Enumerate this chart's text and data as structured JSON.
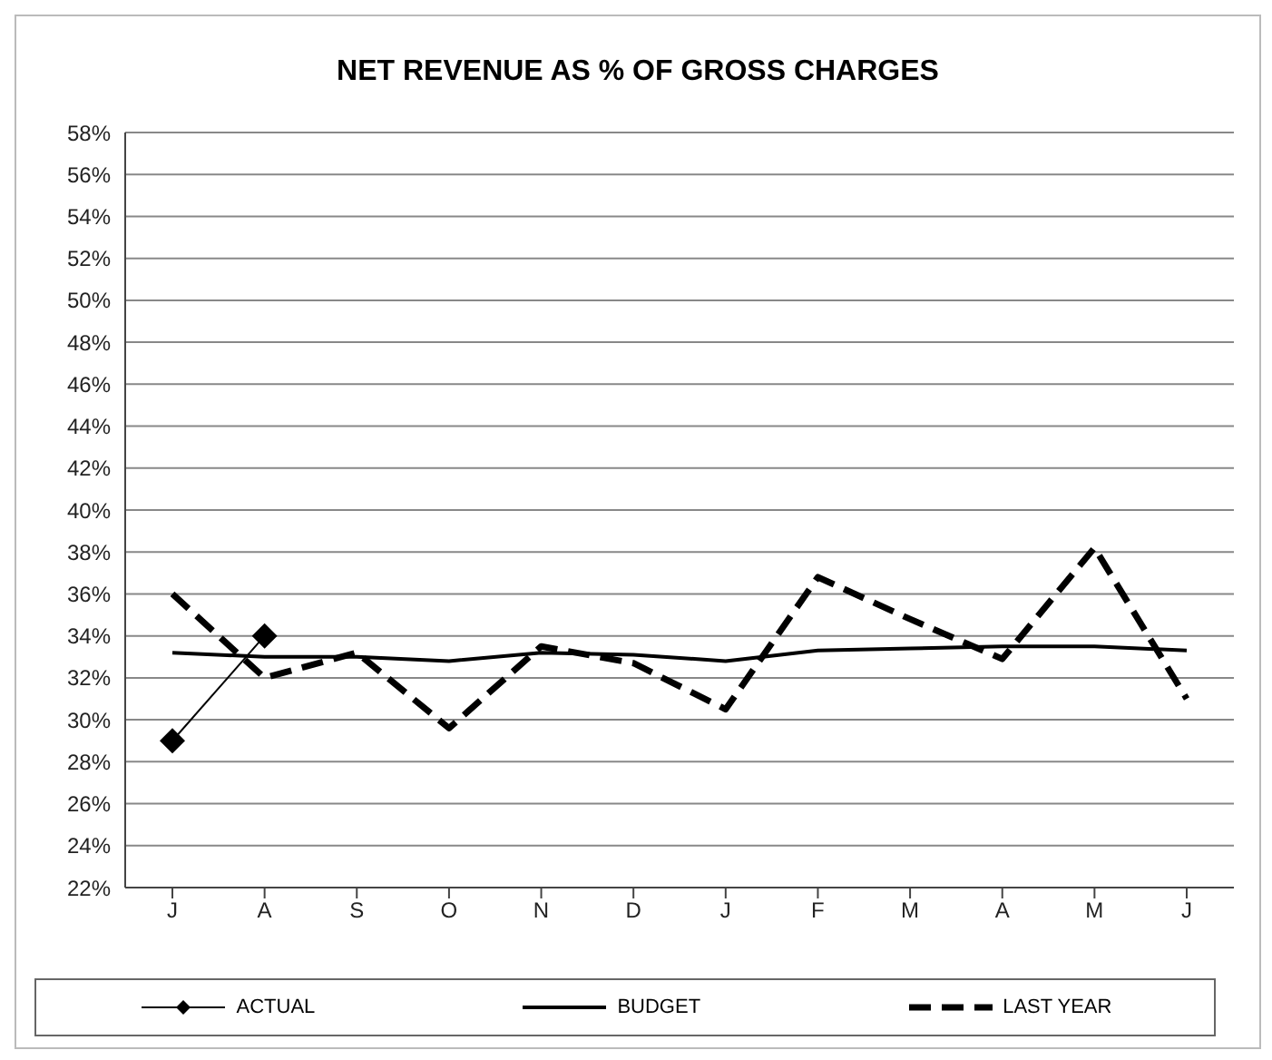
{
  "chart_data": {
    "type": "line",
    "title": "NET REVENUE AS % OF GROSS CHARGES",
    "categories": [
      "J",
      "A",
      "S",
      "O",
      "N",
      "D",
      "J",
      "F",
      "M",
      "A",
      "M",
      "J"
    ],
    "series": [
      {
        "name": "ACTUAL",
        "color": "#000000",
        "marker": "diamond",
        "line_style": "solid",
        "values": [
          29,
          34,
          null,
          null,
          null,
          null,
          null,
          null,
          null,
          null,
          null,
          null
        ]
      },
      {
        "name": "BUDGET",
        "color": "#000000",
        "marker": "none",
        "line_style": "solid",
        "values": [
          33.2,
          33.0,
          33.0,
          32.8,
          33.2,
          33.1,
          32.8,
          33.3,
          33.4,
          33.5,
          33.5,
          33.3
        ]
      },
      {
        "name": "LAST YEAR",
        "color": "#000000",
        "marker": "none",
        "line_style": "dashed",
        "values": [
          36.0,
          32.0,
          33.2,
          29.6,
          33.5,
          32.7,
          30.5,
          36.8,
          34.8,
          32.9,
          38.2,
          31.0
        ]
      }
    ],
    "ylim": [
      22,
      58
    ],
    "yticks": [
      {
        "value": 22,
        "label": "22%"
      },
      {
        "value": 24,
        "label": "24%"
      },
      {
        "value": 26,
        "label": "26%"
      },
      {
        "value": 28,
        "label": "28%"
      },
      {
        "value": 30,
        "label": "30%"
      },
      {
        "value": 32,
        "label": "32%"
      },
      {
        "value": 34,
        "label": "34%"
      },
      {
        "value": 36,
        "label": "36%"
      },
      {
        "value": 38,
        "label": "38%"
      },
      {
        "value": 40,
        "label": "40%"
      },
      {
        "value": 42,
        "label": "42%"
      },
      {
        "value": 44,
        "label": "44%"
      },
      {
        "value": 46,
        "label": "46%"
      },
      {
        "value": 48,
        "label": "48%"
      },
      {
        "value": 50,
        "label": "50%"
      },
      {
        "value": 52,
        "label": "52%"
      },
      {
        "value": 54,
        "label": "54%"
      },
      {
        "value": 56,
        "label": "56%"
      },
      {
        "value": 58,
        "label": "58%"
      }
    ],
    "grid": "y",
    "legend": "bottom"
  }
}
